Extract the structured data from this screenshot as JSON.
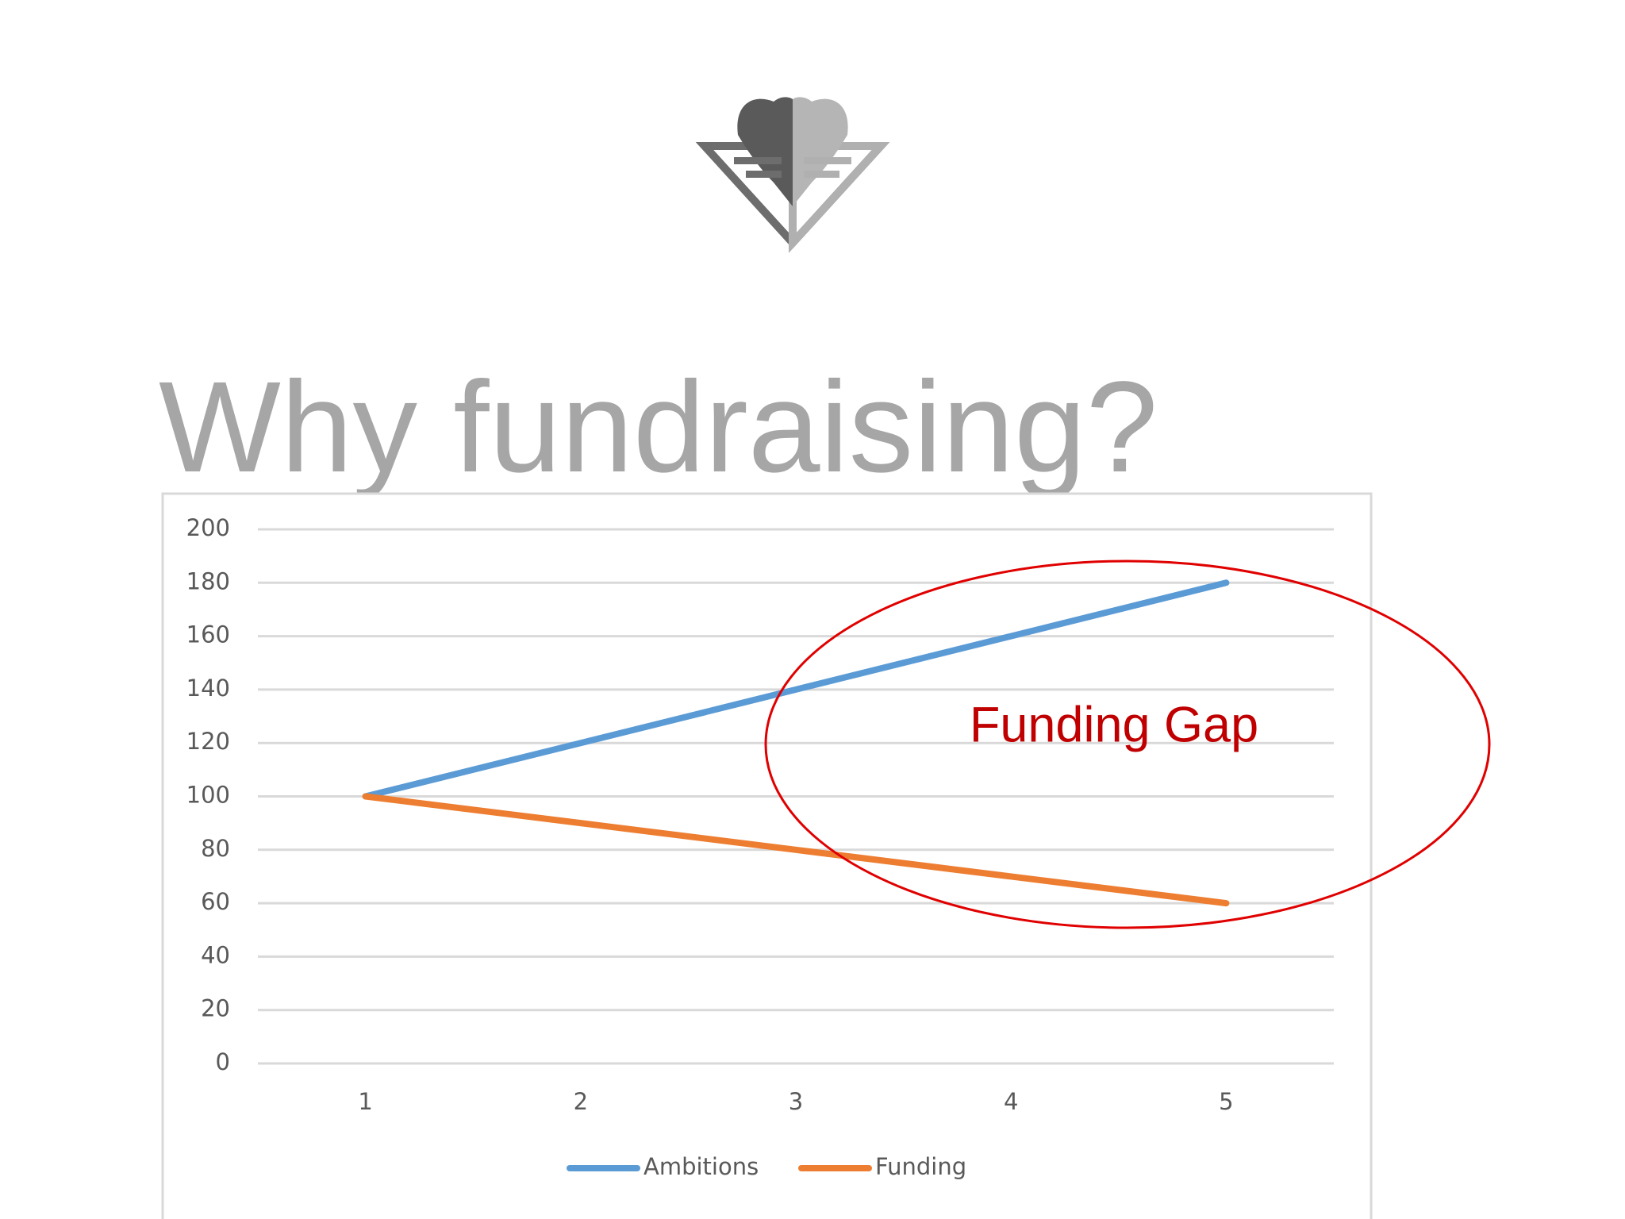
{
  "chart_data": {
    "type": "line",
    "title": "Why fundraising?",
    "categories": [
      "1",
      "2",
      "3",
      "4",
      "5"
    ],
    "series": [
      {
        "name": "Ambitions",
        "color": "#5b9bd5",
        "values": [
          100,
          120,
          140,
          160,
          180
        ]
      },
      {
        "name": "Funding",
        "color": "#ed7d31",
        "values": [
          100,
          90,
          80,
          70,
          60
        ]
      }
    ],
    "ylim": [
      0,
      200
    ],
    "yticks": [
      0,
      20,
      40,
      60,
      80,
      100,
      120,
      140,
      160,
      180,
      200
    ],
    "grid": true,
    "legend": "bottom",
    "annotation": "Funding Gap"
  }
}
